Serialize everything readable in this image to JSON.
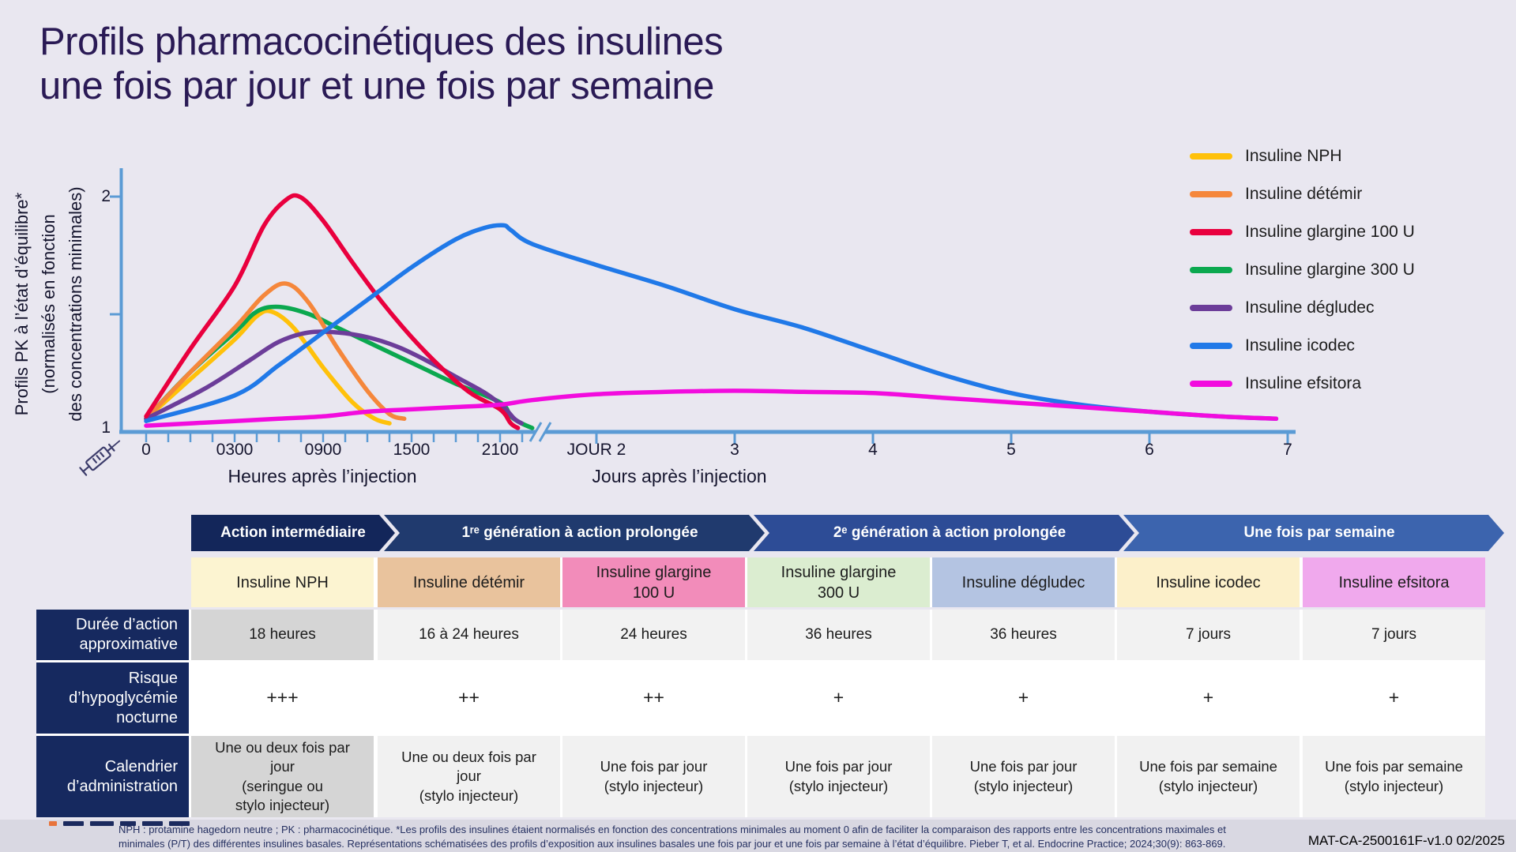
{
  "title": "Profils pharmacocinétiques des insulines\nune fois par jour et une fois par semaine",
  "chart": {
    "y_axis": {
      "title": "Profils PK à l’état d’équilibre*\n(normalisés en fonction\ndes concentrations minimales)",
      "tick_top": "2",
      "tick_bottom": "1"
    },
    "x_axis": {
      "hour_labels": [
        "0",
        "0300",
        "0900",
        "1500",
        "2100"
      ],
      "day_labels": [
        "JOUR 2",
        "3",
        "4",
        "5",
        "6",
        "7"
      ],
      "hours_caption": "Heures après l’injection",
      "days_caption": "Jours après l’injection"
    },
    "axis_color": "#5B9BD5"
  },
  "chart_data": {
    "type": "line",
    "title": "Profils pharmacocinétiques des insulines une fois par jour et une fois par semaine",
    "xlabel": "Heures après l’injection / Jours après l’injection (échelle avec rupture d’axe après 2100)",
    "ylabel": "Profils PK à l’état d’équilibre* (normalisés en fonction des concentrations minimales)",
    "ylim": [
      1,
      2.05
    ],
    "x_unit": "heures",
    "axis_break": "entre 2100 (21 h) et JOUR 2 (48 h)",
    "legend_position": "right-top",
    "grid": false,
    "series": [
      {
        "name": "Insuline NPH",
        "color": "#FFC10A",
        "points": [
          [
            0,
            1.05
          ],
          [
            1.5,
            1.22
          ],
          [
            3,
            1.39
          ],
          [
            4.5,
            1.49
          ],
          [
            5.5,
            1.51
          ],
          [
            7,
            1.44
          ],
          [
            9,
            1.27
          ],
          [
            11,
            1.12
          ],
          [
            12.5,
            1.05
          ],
          [
            13.5,
            1.03
          ]
        ]
      },
      {
        "name": "Insuline détémir",
        "color": "#F5873B",
        "points": [
          [
            0,
            1.05
          ],
          [
            1.5,
            1.25
          ],
          [
            3,
            1.44
          ],
          [
            5,
            1.58
          ],
          [
            6.5,
            1.63
          ],
          [
            8,
            1.55
          ],
          [
            10,
            1.35
          ],
          [
            12,
            1.17
          ],
          [
            13.5,
            1.07
          ],
          [
            14.5,
            1.05
          ]
        ]
      },
      {
        "name": "Insuline glargine 100 U",
        "color": "#E9003E",
        "points": [
          [
            0,
            1.06
          ],
          [
            1.5,
            1.35
          ],
          [
            3,
            1.62
          ],
          [
            5,
            1.88
          ],
          [
            6.5,
            1.99
          ],
          [
            7.5,
            2.0
          ],
          [
            9,
            1.9
          ],
          [
            11,
            1.72
          ],
          [
            13,
            1.55
          ],
          [
            15,
            1.4
          ],
          [
            17,
            1.27
          ],
          [
            19,
            1.16
          ],
          [
            21,
            1.09
          ],
          [
            24,
            1.03
          ],
          [
            26,
            1.01
          ]
        ]
      },
      {
        "name": "Insuline glargine 300 U",
        "color": "#0BA84F",
        "points": [
          [
            0,
            1.05
          ],
          [
            1.5,
            1.25
          ],
          [
            3,
            1.42
          ],
          [
            4.5,
            1.51
          ],
          [
            6,
            1.53
          ],
          [
            8,
            1.5
          ],
          [
            10,
            1.44
          ],
          [
            12,
            1.38
          ],
          [
            14,
            1.32
          ],
          [
            16,
            1.26
          ],
          [
            18,
            1.2
          ],
          [
            21,
            1.12
          ],
          [
            24,
            1.06
          ],
          [
            27,
            1.03
          ],
          [
            30,
            1.01
          ]
        ]
      },
      {
        "name": "Insuline dégludec",
        "color": "#6C3D99",
        "points": [
          [
            0,
            1.05
          ],
          [
            2,
            1.18
          ],
          [
            4,
            1.3
          ],
          [
            6,
            1.38
          ],
          [
            8,
            1.42
          ],
          [
            10,
            1.42
          ],
          [
            12,
            1.4
          ],
          [
            14,
            1.36
          ],
          [
            16,
            1.3
          ],
          [
            18,
            1.23
          ],
          [
            20,
            1.16
          ],
          [
            22,
            1.1
          ],
          [
            25,
            1.05
          ],
          [
            27,
            1.03
          ]
        ]
      },
      {
        "name": "Insuline icodec",
        "color": "#2079E8",
        "points": [
          [
            0,
            1.04
          ],
          [
            3,
            1.15
          ],
          [
            6,
            1.28
          ],
          [
            9,
            1.42
          ],
          [
            12,
            1.56
          ],
          [
            15,
            1.7
          ],
          [
            18,
            1.82
          ],
          [
            20,
            1.87
          ],
          [
            22,
            1.88
          ],
          [
            24,
            1.86
          ],
          [
            30,
            1.8
          ],
          [
            48,
            1.71
          ],
          [
            60,
            1.62
          ],
          [
            72,
            1.52
          ],
          [
            84,
            1.44
          ],
          [
            96,
            1.34
          ],
          [
            108,
            1.24
          ],
          [
            120,
            1.16
          ],
          [
            132,
            1.11
          ],
          [
            144,
            1.08
          ],
          [
            156,
            1.06
          ],
          [
            166,
            1.05
          ]
        ]
      },
      {
        "name": "Insuline efsitora",
        "color": "#F20CDE",
        "points": [
          [
            0,
            1.02
          ],
          [
            3,
            1.04
          ],
          [
            6,
            1.05
          ],
          [
            9,
            1.06
          ],
          [
            12,
            1.08
          ],
          [
            15,
            1.09
          ],
          [
            18,
            1.1
          ],
          [
            21,
            1.11
          ],
          [
            30,
            1.13
          ],
          [
            48,
            1.155
          ],
          [
            60,
            1.165
          ],
          [
            72,
            1.17
          ],
          [
            84,
            1.165
          ],
          [
            96,
            1.16
          ],
          [
            108,
            1.14
          ],
          [
            120,
            1.12
          ],
          [
            132,
            1.1
          ],
          [
            144,
            1.08
          ],
          [
            156,
            1.06
          ],
          [
            166,
            1.05
          ]
        ]
      }
    ]
  },
  "classification": {
    "segments": [
      {
        "label": "Action intermédiaire",
        "color": "#13265A"
      },
      {
        "label": "1ʳᵉ génération à action prolongée",
        "color": "#203A6E"
      },
      {
        "label": "2ᵉ génération à action prolongée",
        "color": "#2D4C96"
      },
      {
        "label": "Une fois par semaine",
        "color": "#3C64AE"
      }
    ]
  },
  "table": {
    "row_labels": {
      "duration": "Durée d’action\napproximative",
      "risk": "Risque\nd’hypoglycémie\nnocturne",
      "schedule": "Calendrier\nd’administration"
    },
    "columns": [
      {
        "name": "Insuline NPH",
        "header_bg": "#FCF4D1",
        "duration": "18 heures",
        "risk": "+++",
        "schedule": "Une ou deux fois par\njour\n(seringue ou\nstylo injecteur)"
      },
      {
        "name": "Insuline détémir",
        "header_bg": "#E9C39D",
        "duration": "16 à 24 heures",
        "risk": "++",
        "schedule": "Une ou deux fois par\njour\n(stylo injecteur)"
      },
      {
        "name": "Insuline glargine\n100 U",
        "header_bg": "#F28CBA",
        "duration": "24 heures",
        "risk": "++",
        "schedule": "Une fois par jour\n(stylo injecteur)"
      },
      {
        "name": "Insuline glargine\n300 U",
        "header_bg": "#DBEDD0",
        "duration": "36 heures",
        "risk": "+",
        "schedule": "Une fois par jour\n(stylo injecteur)"
      },
      {
        "name": "Insuline dégludec",
        "header_bg": "#B4C4E2",
        "duration": "36 heures",
        "risk": "+",
        "schedule": "Une fois par jour\n(stylo injecteur)"
      },
      {
        "name": "Insuline icodec",
        "header_bg": "#FCF0CA",
        "duration": "7 jours",
        "risk": "+",
        "schedule": "Une fois par semaine\n(stylo injecteur)"
      },
      {
        "name": "Insuline efsitora",
        "header_bg": "#F0A9ED",
        "duration": "7 jours",
        "risk": "+",
        "schedule": "Une fois par semaine\n(stylo injecteur)"
      }
    ]
  },
  "footer": {
    "footnote": "NPH : protamine hagedorn neutre ; PK : pharmacocinétique. *Les profils des insulines étaient normalisés en fonction des concentrations minimales au moment 0 afin de faciliter la comparaison des rapports entre les concentrations maximales et\nminimales (P/T) des différentes insulines basales. Représentations schématisées des profils d’exposition aux insulines basales une fois par jour et une fois par semaine à l’état d’équilibre. Pieber T, et al. Endocrine Practice; 2024;30(9): 863-869.",
    "code": "MAT-CA-2500161F-v1.0 02/2025"
  }
}
